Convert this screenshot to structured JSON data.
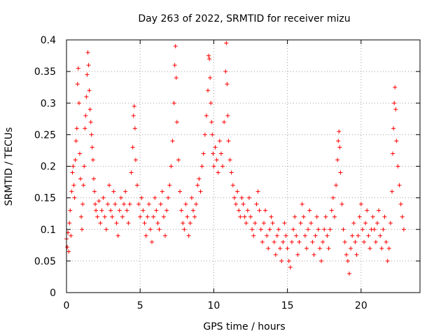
{
  "chart_data": {
    "type": "scatter",
    "title": "Day 263 of 2022, SRMTID for receiver mizu",
    "xlabel": "GPS time / hours",
    "ylabel": "SRMTID / TECUs",
    "xlim": [
      0,
      24
    ],
    "ylim": [
      0,
      0.4
    ],
    "xticks": [
      0,
      5,
      10,
      15,
      20
    ],
    "yticks": [
      0,
      0.05,
      0.1,
      0.15,
      0.2,
      0.25,
      0.3,
      0.35,
      0.4
    ],
    "xtick_labels": [
      "0",
      "5",
      "10",
      "15",
      "20"
    ],
    "ytick_labels": [
      "0",
      "0.05",
      "0.1",
      "0.15",
      "0.2",
      "0.25",
      "0.3",
      "0.35",
      "0.4"
    ],
    "grid": true,
    "marker": "+",
    "color": "#ff0000",
    "series": [
      {
        "name": "SRMTID",
        "points": [
          [
            0.0,
            0.085
          ],
          [
            0.05,
            0.072
          ],
          [
            0.1,
            0.095
          ],
          [
            0.15,
            0.065
          ],
          [
            0.2,
            0.11
          ],
          [
            0.25,
            0.13
          ],
          [
            0.3,
            0.09
          ],
          [
            0.35,
            0.16
          ],
          [
            0.4,
            0.19
          ],
          [
            0.45,
            0.2
          ],
          [
            0.5,
            0.17
          ],
          [
            0.55,
            0.15
          ],
          [
            0.6,
            0.21
          ],
          [
            0.65,
            0.24
          ],
          [
            0.7,
            0.26
          ],
          [
            0.75,
            0.33
          ],
          [
            0.8,
            0.355
          ],
          [
            0.85,
            0.3
          ],
          [
            0.9,
            0.22
          ],
          [
            0.95,
            0.18
          ],
          [
            1.0,
            0.12
          ],
          [
            1.05,
            0.1
          ],
          [
            1.1,
            0.14
          ],
          [
            1.15,
            0.17
          ],
          [
            1.2,
            0.2
          ],
          [
            1.25,
            0.26
          ],
          [
            1.3,
            0.28
          ],
          [
            1.35,
            0.31
          ],
          [
            1.4,
            0.345
          ],
          [
            1.45,
            0.38
          ],
          [
            1.5,
            0.36
          ],
          [
            1.55,
            0.32
          ],
          [
            1.6,
            0.29
          ],
          [
            1.65,
            0.27
          ],
          [
            1.7,
            0.25
          ],
          [
            1.75,
            0.23
          ],
          [
            1.8,
            0.21
          ],
          [
            1.85,
            0.18
          ],
          [
            1.9,
            0.16
          ],
          [
            1.95,
            0.14
          ],
          [
            2.0,
            0.13
          ],
          [
            2.1,
            0.12
          ],
          [
            2.2,
            0.145
          ],
          [
            2.3,
            0.11
          ],
          [
            2.4,
            0.13
          ],
          [
            2.5,
            0.15
          ],
          [
            2.6,
            0.12
          ],
          [
            2.7,
            0.1
          ],
          [
            2.8,
            0.14
          ],
          [
            2.9,
            0.17
          ],
          [
            3.0,
            0.13
          ],
          [
            3.1,
            0.12
          ],
          [
            3.2,
            0.16
          ],
          [
            3.3,
            0.14
          ],
          [
            3.4,
            0.11
          ],
          [
            3.5,
            0.09
          ],
          [
            3.6,
            0.13
          ],
          [
            3.7,
            0.15
          ],
          [
            3.8,
            0.12
          ],
          [
            3.9,
            0.14
          ],
          [
            4.0,
            0.16
          ],
          [
            4.1,
            0.13
          ],
          [
            4.2,
            0.11
          ],
          [
            4.3,
            0.14
          ],
          [
            4.4,
            0.19
          ],
          [
            4.5,
            0.23
          ],
          [
            4.55,
            0.28
          ],
          [
            4.6,
            0.295
          ],
          [
            4.65,
            0.26
          ],
          [
            4.7,
            0.21
          ],
          [
            4.8,
            0.17
          ],
          [
            4.9,
            0.14
          ],
          [
            5.0,
            0.12
          ],
          [
            5.1,
            0.15
          ],
          [
            5.2,
            0.13
          ],
          [
            5.3,
            0.11
          ],
          [
            5.4,
            0.09
          ],
          [
            5.5,
            0.12
          ],
          [
            5.6,
            0.14
          ],
          [
            5.7,
            0.1
          ],
          [
            5.8,
            0.08
          ],
          [
            5.9,
            0.12
          ],
          [
            6.0,
            0.15
          ],
          [
            6.1,
            0.13
          ],
          [
            6.2,
            0.11
          ],
          [
            6.3,
            0.1
          ],
          [
            6.4,
            0.14
          ],
          [
            6.5,
            0.16
          ],
          [
            6.6,
            0.12
          ],
          [
            6.7,
            0.09
          ],
          [
            6.8,
            0.13
          ],
          [
            6.9,
            0.15
          ],
          [
            7.0,
            0.17
          ],
          [
            7.1,
            0.2
          ],
          [
            7.2,
            0.24
          ],
          [
            7.3,
            0.3
          ],
          [
            7.35,
            0.36
          ],
          [
            7.4,
            0.39
          ],
          [
            7.45,
            0.34
          ],
          [
            7.5,
            0.27
          ],
          [
            7.6,
            0.21
          ],
          [
            7.7,
            0.16
          ],
          [
            7.8,
            0.13
          ],
          [
            7.9,
            0.11
          ],
          [
            8.0,
            0.1
          ],
          [
            8.1,
            0.14
          ],
          [
            8.2,
            0.12
          ],
          [
            8.3,
            0.09
          ],
          [
            8.4,
            0.11
          ],
          [
            8.5,
            0.15
          ],
          [
            8.6,
            0.13
          ],
          [
            8.7,
            0.12
          ],
          [
            8.8,
            0.14
          ],
          [
            8.9,
            0.17
          ],
          [
            9.0,
            0.18
          ],
          [
            9.1,
            0.16
          ],
          [
            9.2,
            0.2
          ],
          [
            9.3,
            0.22
          ],
          [
            9.4,
            0.25
          ],
          [
            9.5,
            0.28
          ],
          [
            9.6,
            0.32
          ],
          [
            9.65,
            0.375
          ],
          [
            9.7,
            0.37
          ],
          [
            9.75,
            0.34
          ],
          [
            9.8,
            0.3
          ],
          [
            9.85,
            0.27
          ],
          [
            9.9,
            0.25
          ],
          [
            9.95,
            0.22
          ],
          [
            10.0,
            0.2
          ],
          [
            10.1,
            0.23
          ],
          [
            10.2,
            0.21
          ],
          [
            10.3,
            0.19
          ],
          [
            10.4,
            0.24
          ],
          [
            10.5,
            0.22
          ],
          [
            10.6,
            0.2
          ],
          [
            10.7,
            0.27
          ],
          [
            10.8,
            0.35
          ],
          [
            10.85,
            0.395
          ],
          [
            10.9,
            0.33
          ],
          [
            10.95,
            0.28
          ],
          [
            11.0,
            0.24
          ],
          [
            11.1,
            0.21
          ],
          [
            11.2,
            0.19
          ],
          [
            11.3,
            0.17
          ],
          [
            11.4,
            0.15
          ],
          [
            11.5,
            0.14
          ],
          [
            11.6,
            0.16
          ],
          [
            11.7,
            0.13
          ],
          [
            11.8,
            0.12
          ],
          [
            11.9,
            0.15
          ],
          [
            12.0,
            0.14
          ],
          [
            12.1,
            0.12
          ],
          [
            12.2,
            0.11
          ],
          [
            12.3,
            0.13
          ],
          [
            12.4,
            0.15
          ],
          [
            12.5,
            0.12
          ],
          [
            12.6,
            0.1
          ],
          [
            12.7,
            0.09
          ],
          [
            12.8,
            0.11
          ],
          [
            12.9,
            0.14
          ],
          [
            13.0,
            0.16
          ],
          [
            13.1,
            0.13
          ],
          [
            13.2,
            0.1
          ],
          [
            13.3,
            0.08
          ],
          [
            13.4,
            0.11
          ],
          [
            13.5,
            0.13
          ],
          [
            13.6,
            0.09
          ],
          [
            13.7,
            0.07
          ],
          [
            13.8,
            0.1
          ],
          [
            13.9,
            0.12
          ],
          [
            14.0,
            0.11
          ],
          [
            14.1,
            0.08
          ],
          [
            14.2,
            0.06
          ],
          [
            14.3,
            0.09
          ],
          [
            14.4,
            0.1
          ],
          [
            14.5,
            0.07
          ],
          [
            14.6,
            0.05
          ],
          [
            14.7,
            0.08
          ],
          [
            14.8,
            0.11
          ],
          [
            14.9,
            0.09
          ],
          [
            15.0,
            0.07
          ],
          [
            15.1,
            0.05
          ],
          [
            15.2,
            0.04
          ],
          [
            15.3,
            0.08
          ],
          [
            15.4,
            0.1
          ],
          [
            15.5,
            0.12
          ],
          [
            15.6,
            0.09
          ],
          [
            15.7,
            0.06
          ],
          [
            15.8,
            0.08
          ],
          [
            15.9,
            0.11
          ],
          [
            16.0,
            0.14
          ],
          [
            16.1,
            0.12
          ],
          [
            16.2,
            0.09
          ],
          [
            16.3,
            0.07
          ],
          [
            16.4,
            0.1
          ],
          [
            16.5,
            0.13
          ],
          [
            16.6,
            0.11
          ],
          [
            16.7,
            0.08
          ],
          [
            16.8,
            0.06
          ],
          [
            16.9,
            0.09
          ],
          [
            17.0,
            0.12
          ],
          [
            17.1,
            0.1
          ],
          [
            17.2,
            0.07
          ],
          [
            17.3,
            0.05
          ],
          [
            17.4,
            0.08
          ],
          [
            17.5,
            0.1
          ],
          [
            17.6,
            0.12
          ],
          [
            17.7,
            0.09
          ],
          [
            17.8,
            0.07
          ],
          [
            17.9,
            0.1
          ],
          [
            18.0,
            0.13
          ],
          [
            18.1,
            0.15
          ],
          [
            18.2,
            0.12
          ],
          [
            18.3,
            0.17
          ],
          [
            18.4,
            0.21
          ],
          [
            18.45,
            0.24
          ],
          [
            18.5,
            0.255
          ],
          [
            18.55,
            0.23
          ],
          [
            18.6,
            0.19
          ],
          [
            18.7,
            0.14
          ],
          [
            18.8,
            0.1
          ],
          [
            18.9,
            0.08
          ],
          [
            19.0,
            0.06
          ],
          [
            19.1,
            0.05
          ],
          [
            19.2,
            0.03
          ],
          [
            19.3,
            0.07
          ],
          [
            19.4,
            0.09
          ],
          [
            19.5,
            0.11
          ],
          [
            19.6,
            0.08
          ],
          [
            19.7,
            0.06
          ],
          [
            19.8,
            0.09
          ],
          [
            19.9,
            0.12
          ],
          [
            20.0,
            0.14
          ],
          [
            20.1,
            0.1
          ],
          [
            20.2,
            0.08
          ],
          [
            20.3,
            0.11
          ],
          [
            20.4,
            0.13
          ],
          [
            20.5,
            0.09
          ],
          [
            20.6,
            0.07
          ],
          [
            20.7,
            0.1
          ],
          [
            20.8,
            0.12
          ],
          [
            20.9,
            0.1
          ],
          [
            21.0,
            0.08
          ],
          [
            21.1,
            0.11
          ],
          [
            21.2,
            0.13
          ],
          [
            21.3,
            0.09
          ],
          [
            21.4,
            0.07
          ],
          [
            21.5,
            0.1
          ],
          [
            21.6,
            0.12
          ],
          [
            21.7,
            0.08
          ],
          [
            21.8,
            0.05
          ],
          [
            21.9,
            0.07
          ],
          [
            22.0,
            0.11
          ],
          [
            22.1,
            0.16
          ],
          [
            22.15,
            0.22
          ],
          [
            22.2,
            0.26
          ],
          [
            22.25,
            0.3
          ],
          [
            22.3,
            0.325
          ],
          [
            22.35,
            0.29
          ],
          [
            22.4,
            0.24
          ],
          [
            22.5,
            0.2
          ],
          [
            22.6,
            0.17
          ],
          [
            22.7,
            0.14
          ],
          [
            22.8,
            0.12
          ],
          [
            22.9,
            0.1
          ]
        ]
      }
    ]
  }
}
